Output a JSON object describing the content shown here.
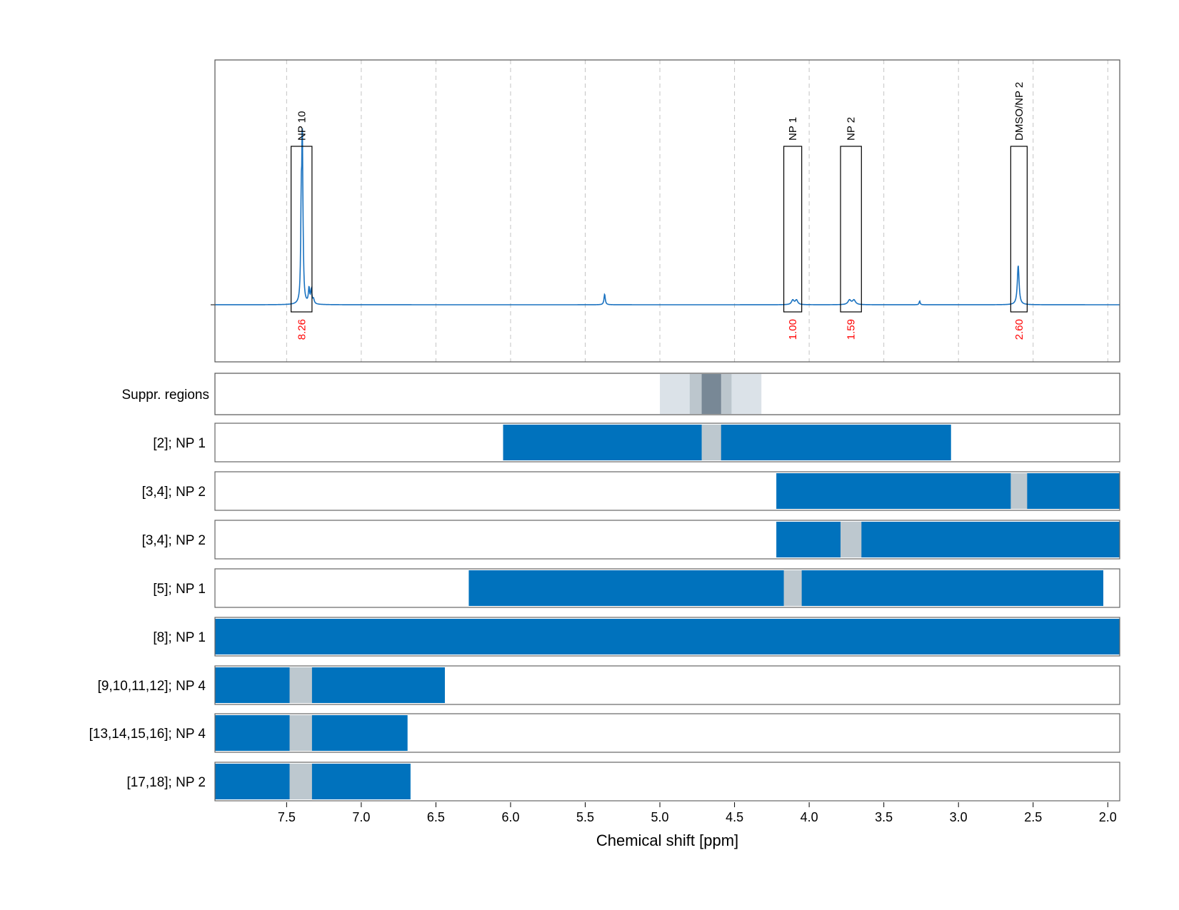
{
  "chart_data": {
    "type": "area",
    "xlabel": "Chemical shift [ppm]",
    "xlim": [
      7.98,
      1.92
    ],
    "x_reversed": true,
    "x_ticks": [
      "7.5",
      "7.0",
      "6.5",
      "6.0",
      "5.5",
      "5.0",
      "4.5",
      "4.0",
      "3.5",
      "3.0",
      "2.5",
      "2.0"
    ],
    "grid": "vertical dashed",
    "colors": {
      "spectrum": "#1a72c0",
      "band": "#0072bd",
      "gap": "#bdc8cf",
      "suppr_light": "#dbe2e8",
      "suppr_mid": "#bcc6cd",
      "suppr_dark": "#788896",
      "integral_text": "#ff0000"
    },
    "spectrum": {
      "baseline": 0,
      "peaks": [
        {
          "shift": 7.395,
          "height": 1.0,
          "width": 0.004
        },
        {
          "shift": 7.402,
          "height": 0.58,
          "width": 0.004
        },
        {
          "shift": 7.39,
          "height": 0.15,
          "width": 0.005
        },
        {
          "shift": 7.35,
          "height": 0.1,
          "width": 0.005
        },
        {
          "shift": 7.335,
          "height": 0.09,
          "width": 0.005
        },
        {
          "shift": 7.32,
          "height": 0.03,
          "width": 0.006
        },
        {
          "shift": 5.37,
          "height": 0.07,
          "width": 0.005
        },
        {
          "shift": 4.11,
          "height": 0.03,
          "width": 0.01
        },
        {
          "shift": 4.085,
          "height": 0.03,
          "width": 0.01
        },
        {
          "shift": 3.73,
          "height": 0.03,
          "width": 0.012
        },
        {
          "shift": 3.7,
          "height": 0.03,
          "width": 0.012
        },
        {
          "shift": 3.26,
          "height": 0.025,
          "width": 0.004
        },
        {
          "shift": 2.6,
          "height": 0.26,
          "width": 0.007
        }
      ]
    },
    "annotations": [
      {
        "name": "NP 10",
        "from": 7.47,
        "to": 7.33,
        "integral": "8.26"
      },
      {
        "name": "NP 1",
        "from": 4.17,
        "to": 4.05,
        "integral": "1.00"
      },
      {
        "name": "NP 2",
        "from": 3.79,
        "to": 3.65,
        "integral": "1.59"
      },
      {
        "name": "DMSO/NP 2",
        "from": 2.65,
        "to": 2.54,
        "integral": "2.60"
      }
    ],
    "suppression": {
      "label": "Suppr. regions",
      "layers": [
        {
          "from": 5.0,
          "to": 4.32,
          "level": "light"
        },
        {
          "from": 4.8,
          "to": 4.52,
          "level": "mid"
        },
        {
          "from": 4.72,
          "to": 4.59,
          "level": "dark"
        }
      ]
    },
    "rows": [
      {
        "label": "[2]; NP 1",
        "from": 6.05,
        "to": 3.05,
        "gaps": [
          [
            4.72,
            4.59
          ]
        ]
      },
      {
        "label": "[3,4]; NP 2",
        "from": 4.22,
        "to": 1.92,
        "gaps": [
          [
            2.65,
            2.54
          ]
        ]
      },
      {
        "label": "[3,4]; NP 2",
        "from": 4.22,
        "to": 1.92,
        "gaps": [
          [
            3.79,
            3.65
          ]
        ]
      },
      {
        "label": "[5]; NP 1",
        "from": 6.28,
        "to": 2.03,
        "gaps": [
          [
            4.17,
            4.05
          ]
        ]
      },
      {
        "label": "[8]; NP 1",
        "from": 7.98,
        "to": 1.92,
        "gaps": []
      },
      {
        "label": "[9,10,11,12]; NP 4",
        "from": 7.98,
        "to": 6.44,
        "gaps": [
          [
            7.48,
            7.33
          ]
        ]
      },
      {
        "label": "[13,14,15,16]; NP 4",
        "from": 7.98,
        "to": 6.69,
        "gaps": [
          [
            7.48,
            7.33
          ]
        ]
      },
      {
        "label": "[17,18]; NP 2",
        "from": 7.98,
        "to": 6.67,
        "gaps": [
          [
            7.48,
            7.33
          ]
        ]
      }
    ]
  }
}
